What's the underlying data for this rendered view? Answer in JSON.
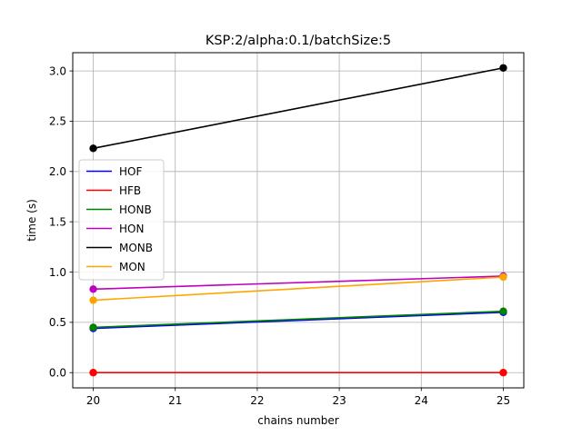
{
  "chart_data": {
    "type": "line",
    "title": "KSP:2/alpha:0.1/batchSize:5",
    "xlabel": "chains number",
    "ylabel": "time (s)",
    "x": [
      20,
      25
    ],
    "xlim": [
      19.75,
      25.25
    ],
    "ylim": [
      -0.1515,
      3.1815
    ],
    "xticks": [
      20,
      21,
      22,
      23,
      24,
      25
    ],
    "yticks": [
      "0.0",
      "0.5",
      "1.0",
      "1.5",
      "2.0",
      "2.5",
      "3.0"
    ],
    "grid": true,
    "legend_position": "center-left",
    "series": [
      {
        "name": "HOF",
        "color": "#0000ff",
        "values": [
          0.44,
          0.6
        ]
      },
      {
        "name": "HFB",
        "color": "#ff0000",
        "values": [
          0.0,
          0.0
        ]
      },
      {
        "name": "HONB",
        "color": "#008000",
        "values": [
          0.45,
          0.61
        ]
      },
      {
        "name": "HON",
        "color": "#bf00bf",
        "values": [
          0.83,
          0.96
        ]
      },
      {
        "name": "MONB",
        "color": "#000000",
        "values": [
          2.23,
          3.03
        ]
      },
      {
        "name": "MON",
        "color": "#ffa500",
        "values": [
          0.72,
          0.95
        ]
      }
    ]
  }
}
